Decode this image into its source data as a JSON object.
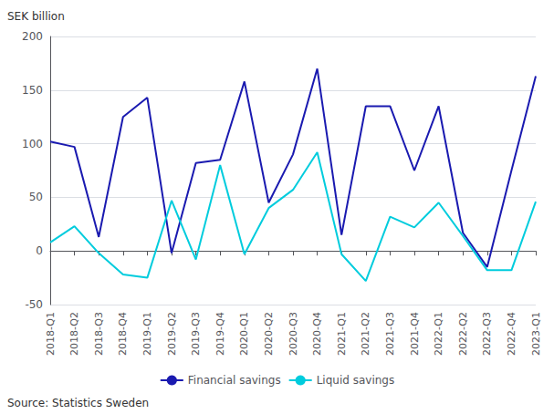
{
  "chart_data": {
    "type": "line",
    "ylabel": "SEK billion",
    "annotations": [
      "Source: Statistics Sweden"
    ],
    "categories": [
      "2018-Q1",
      "2018-Q2",
      "2018-Q3",
      "2018-Q4",
      "2019-Q1",
      "2019-Q2",
      "2019-Q3",
      "2019-Q4",
      "2020-Q1",
      "2020-Q2",
      "2020-Q3",
      "2020-Q4",
      "2021-Q1",
      "2021-Q2",
      "2021-Q3",
      "2021-Q4",
      "2022-Q1",
      "2022-Q2",
      "2022-Q3",
      "2022-Q4",
      "2023-Q1"
    ],
    "series": [
      {
        "name": "Financial savings",
        "color": "#1a1ab0",
        "values": [
          102,
          97,
          13,
          125,
          143,
          -2,
          82,
          85,
          158,
          45,
          90,
          170,
          15,
          135,
          135,
          75,
          135,
          17,
          -15,
          75,
          163
        ]
      },
      {
        "name": "Liquid savings",
        "color": "#00ccdd",
        "values": [
          8,
          23,
          -2,
          -22,
          -25,
          47,
          -8,
          80,
          -3,
          40,
          57,
          92,
          -3,
          -28,
          32,
          22,
          45,
          14,
          -18,
          -18,
          46
        ]
      }
    ],
    "ylim": [
      -50,
      200
    ],
    "yticks": [
      -50,
      0,
      50,
      100,
      150,
      200
    ],
    "grid": true,
    "legend": "bottom"
  }
}
